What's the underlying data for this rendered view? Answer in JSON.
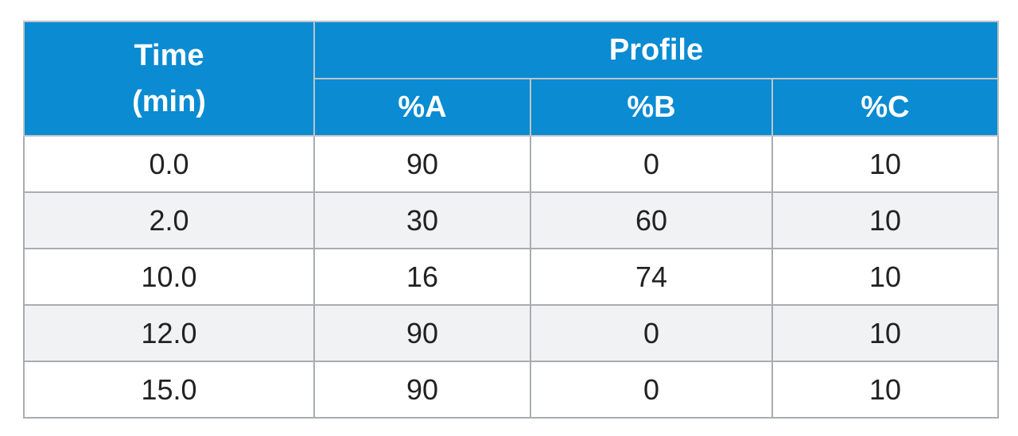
{
  "table": {
    "header": {
      "time_line1": "Time",
      "time_line2": "(min)",
      "profile": "Profile",
      "sub_columns": [
        "%A",
        "%B",
        "%C"
      ]
    },
    "rows": [
      {
        "time": "0.0",
        "a": "90",
        "b": "0",
        "c": "10"
      },
      {
        "time": "2.0",
        "a": "30",
        "b": "60",
        "c": "10"
      },
      {
        "time": "10.0",
        "a": "16",
        "b": "74",
        "c": "10"
      },
      {
        "time": "12.0",
        "a": "90",
        "b": "0",
        "c": "10"
      },
      {
        "time": "15.0",
        "a": "90",
        "b": "0",
        "c": "10"
      }
    ]
  },
  "colors": {
    "header_bg": "#0a8bd2",
    "header_text": "#ffffff",
    "stripe_bg": "#f1f2f4",
    "border": "#a9adb2"
  }
}
